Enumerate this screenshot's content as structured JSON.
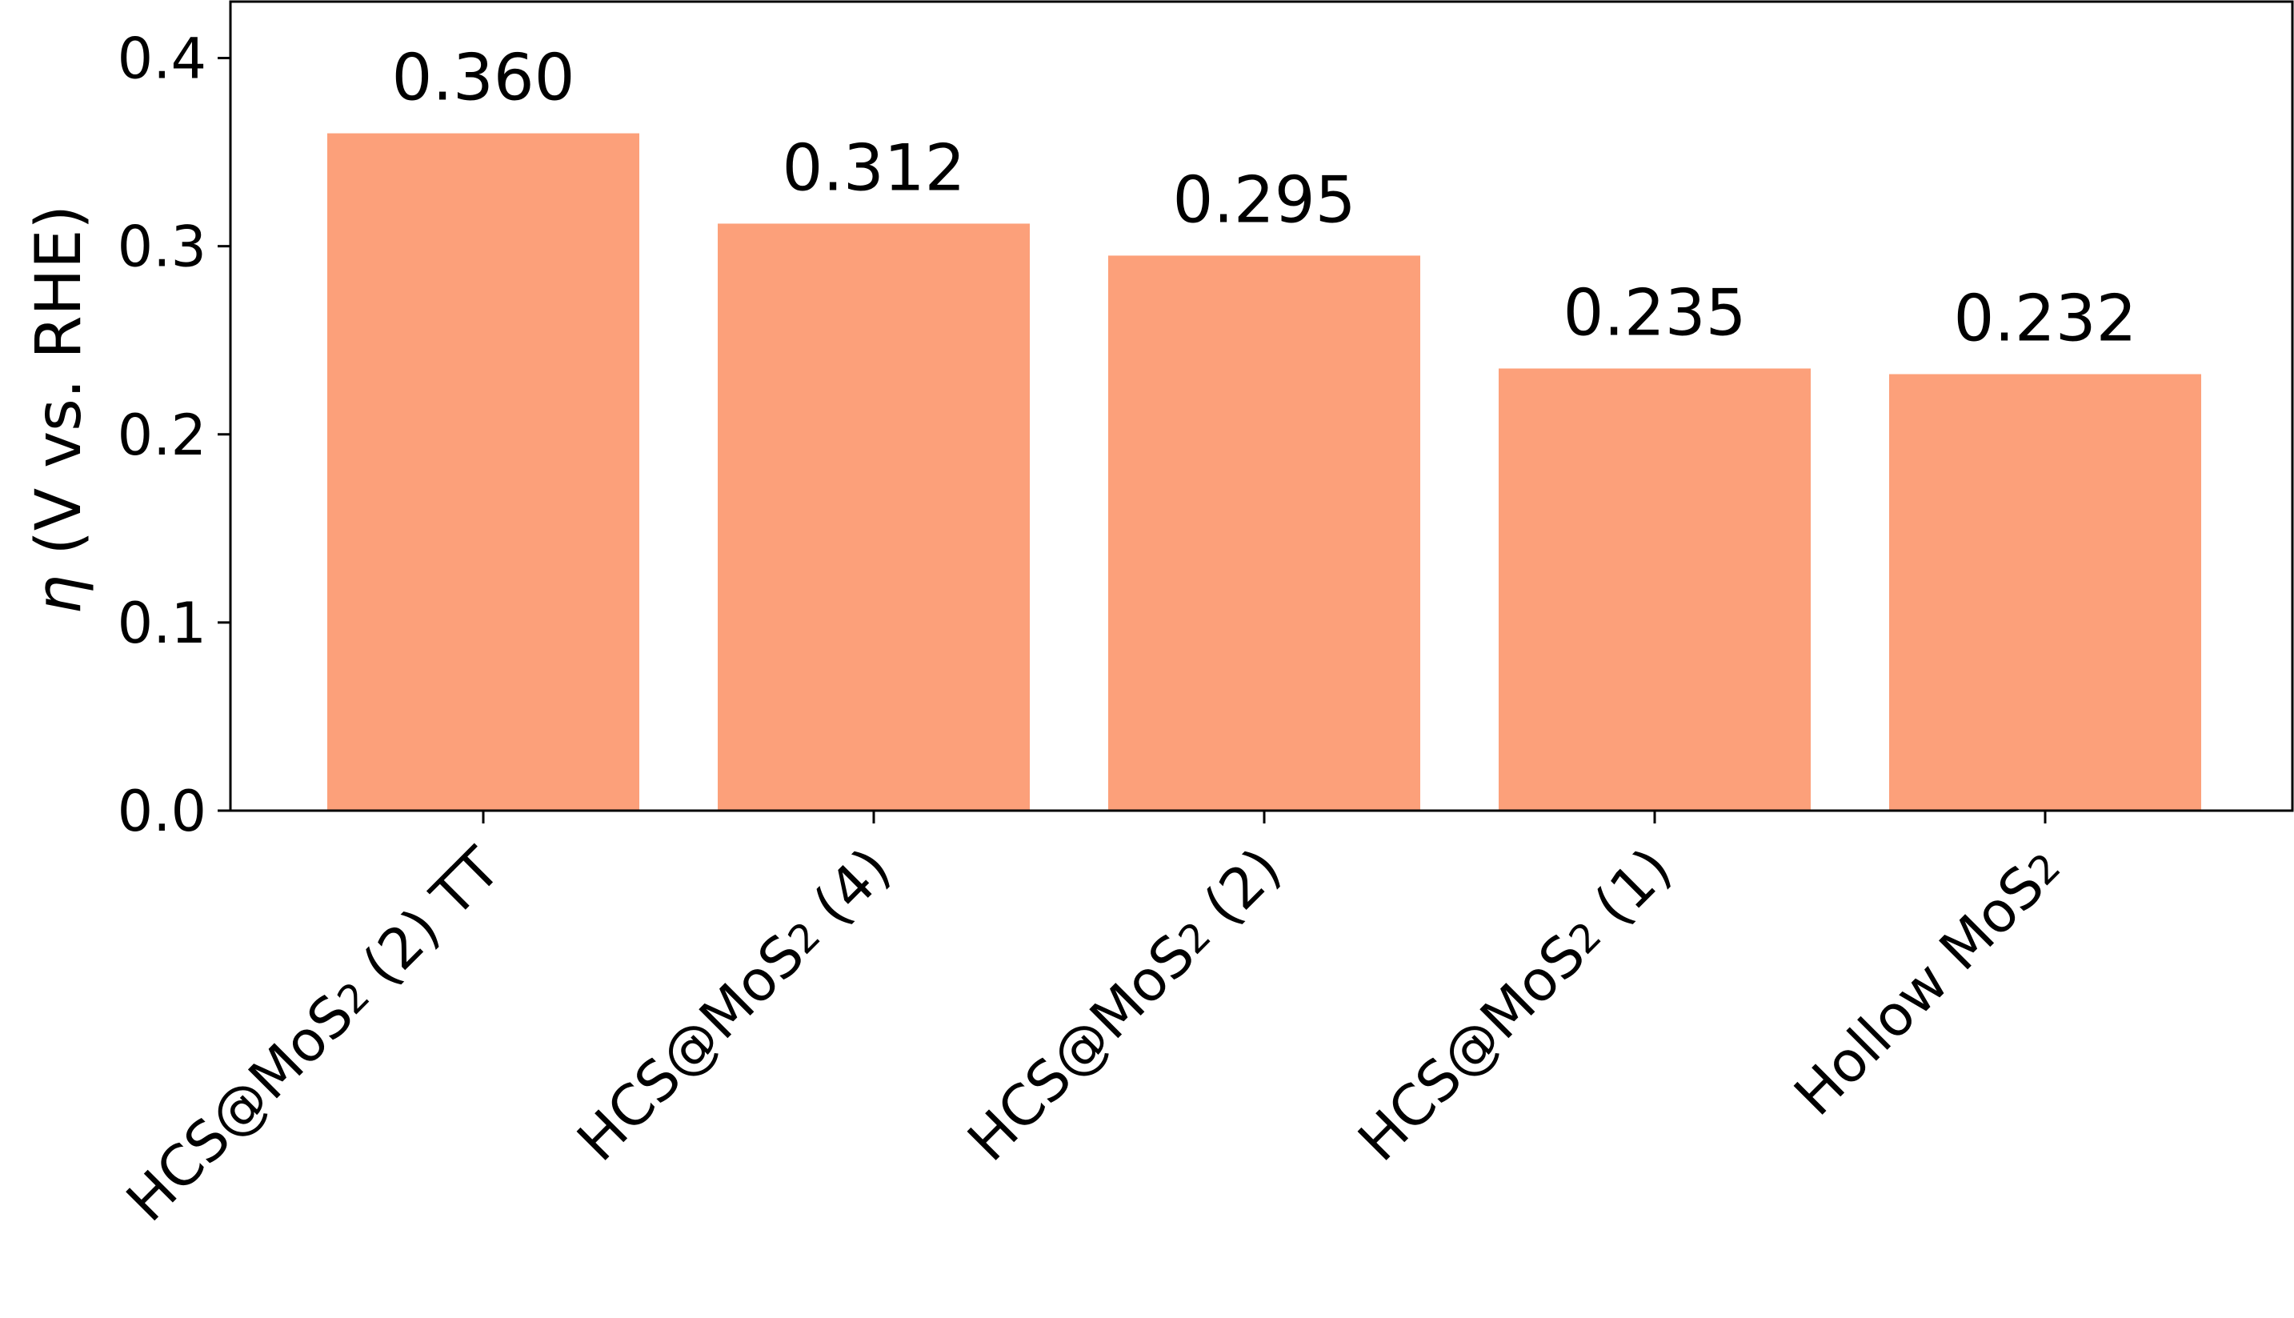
{
  "chart_data": {
    "type": "bar",
    "categories": [
      {
        "label": "HCS@MoS",
        "sub": "2",
        "suffix": " (2) TT"
      },
      {
        "label": "HCS@MoS",
        "sub": "2",
        "suffix": " (4)"
      },
      {
        "label": "HCS@MoS",
        "sub": "2",
        "suffix": " (2)"
      },
      {
        "label": "HCS@MoS",
        "sub": "2",
        "suffix": " (1)"
      },
      {
        "label": "Hollow MoS",
        "sub": "2",
        "suffix": ""
      }
    ],
    "values": [
      0.36,
      0.312,
      0.295,
      0.235,
      0.232
    ],
    "value_labels": [
      "0.360",
      "0.312",
      "0.295",
      "0.235",
      "0.232"
    ],
    "ylabel": {
      "symbol": "η",
      "text": " (V vs. RHE)"
    },
    "xlabel": "",
    "ylim": [
      0,
      0.43
    ],
    "yticks": [
      0.0,
      0.1,
      0.2,
      0.3,
      0.4
    ],
    "ytick_labels": [
      "0.0",
      "0.1",
      "0.2",
      "0.3",
      "0.4"
    ],
    "bar_color": "#FCA07A",
    "grid": false,
    "legend": "none"
  }
}
